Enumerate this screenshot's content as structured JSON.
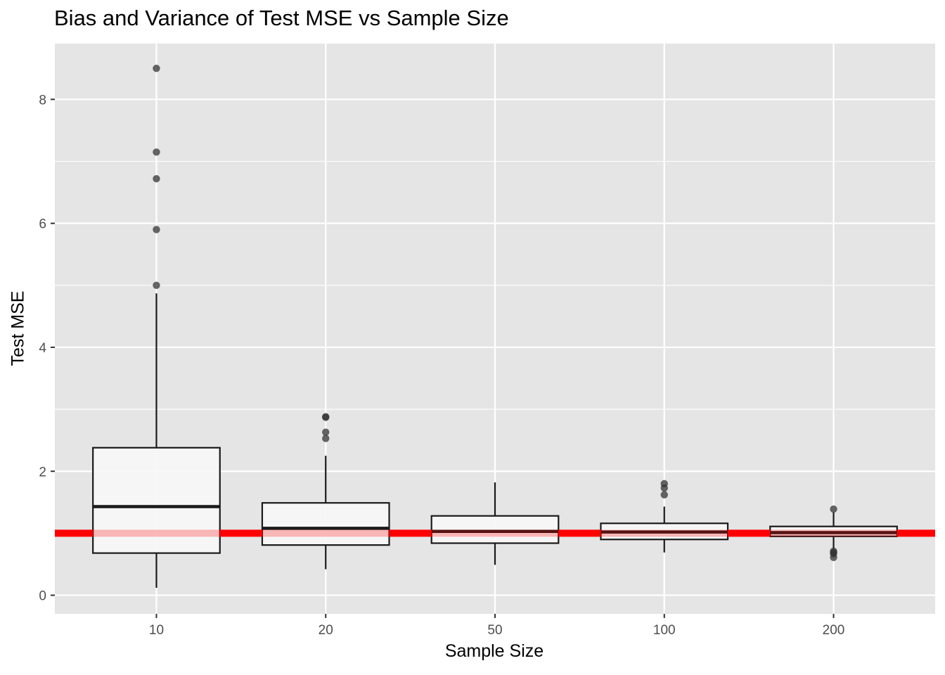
{
  "chart_data": {
    "type": "boxplot",
    "title": "Bias and Variance of Test MSE vs Sample Size",
    "xlabel": "Sample Size",
    "ylabel": "Test MSE",
    "categories": [
      "10",
      "20",
      "50",
      "100",
      "200"
    ],
    "ylim": [
      -0.3,
      8.9
    ],
    "yticks": [
      0,
      2,
      4,
      6,
      8
    ],
    "grid": true,
    "reference_line": {
      "y": 1.0,
      "color": "#ff0000"
    },
    "boxes": [
      {
        "category": "10",
        "lower_whisker": 0.12,
        "q1": 0.68,
        "median": 1.43,
        "q3": 2.38,
        "upper_whisker": 4.87,
        "outliers": [
          5.0,
          5.9,
          6.72,
          7.15,
          8.5
        ]
      },
      {
        "category": "20",
        "lower_whisker": 0.42,
        "q1": 0.81,
        "median": 1.08,
        "q3": 1.49,
        "upper_whisker": 2.25,
        "outliers": [
          2.53,
          2.63,
          2.87,
          2.88
        ]
      },
      {
        "category": "50",
        "lower_whisker": 0.49,
        "q1": 0.84,
        "median": 1.03,
        "q3": 1.28,
        "upper_whisker": 1.82,
        "outliers": []
      },
      {
        "category": "100",
        "lower_whisker": 0.69,
        "q1": 0.9,
        "median": 1.02,
        "q3": 1.16,
        "upper_whisker": 1.43,
        "outliers": [
          1.62,
          1.73,
          1.8
        ]
      },
      {
        "category": "200",
        "lower_whisker": 0.75,
        "q1": 0.95,
        "median": 1.01,
        "q3": 1.11,
        "upper_whisker": 1.34,
        "outliers": [
          0.61,
          0.67,
          0.69,
          0.71,
          1.39
        ]
      }
    ],
    "colors": {
      "panel": "#e5e5e5",
      "grid": "#ffffff",
      "box_fill": "#f7f7f7",
      "box_stroke": "#1a1a1a",
      "outlier": "#333333",
      "reference": "#ff0000"
    }
  }
}
